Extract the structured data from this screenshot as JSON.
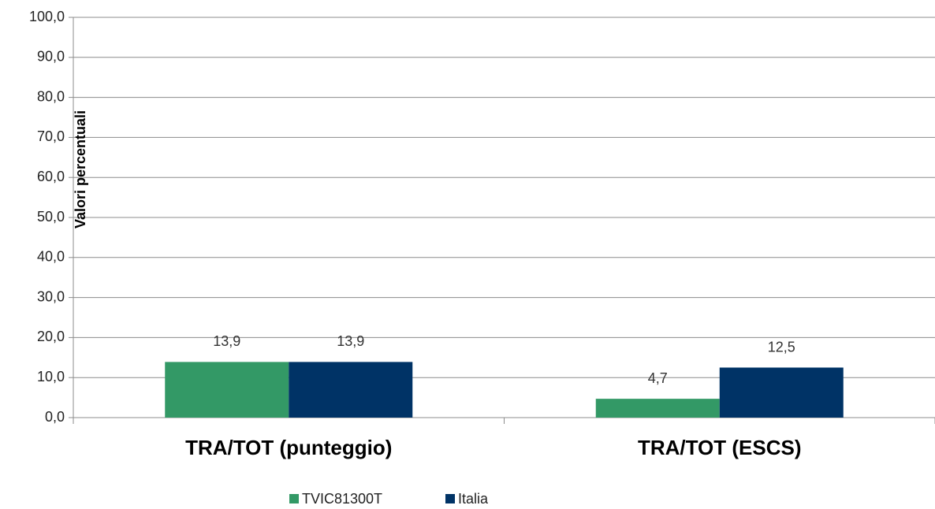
{
  "chart_data": {
    "type": "bar",
    "y_axis_label": "Valori percentuali",
    "categories": [
      "TRA/TOT (punteggio)",
      "TRA/TOT (ESCS)"
    ],
    "series": [
      {
        "name": "TVIC81300T",
        "color": "#339966",
        "values": [
          13.9,
          4.7
        ],
        "value_labels": [
          "13,9",
          "4,7"
        ]
      },
      {
        "name": "Italia",
        "color": "#003366",
        "values": [
          13.9,
          12.5
        ],
        "value_labels": [
          "13,9",
          "12,5"
        ]
      }
    ],
    "ylim": [
      0,
      100
    ],
    "yticks": [
      {
        "value": 0,
        "label": "0,0"
      },
      {
        "value": 10,
        "label": "10,0"
      },
      {
        "value": 20,
        "label": "20,0"
      },
      {
        "value": 30,
        "label": "30,0"
      },
      {
        "value": 40,
        "label": "40,0"
      },
      {
        "value": 50,
        "label": "50,0"
      },
      {
        "value": 60,
        "label": "60,0"
      },
      {
        "value": 70,
        "label": "70,0"
      },
      {
        "value": 80,
        "label": "80,0"
      },
      {
        "value": 90,
        "label": "90,0"
      },
      {
        "value": 100,
        "label": "100,0"
      }
    ],
    "grid": true,
    "legend": "bottom"
  }
}
